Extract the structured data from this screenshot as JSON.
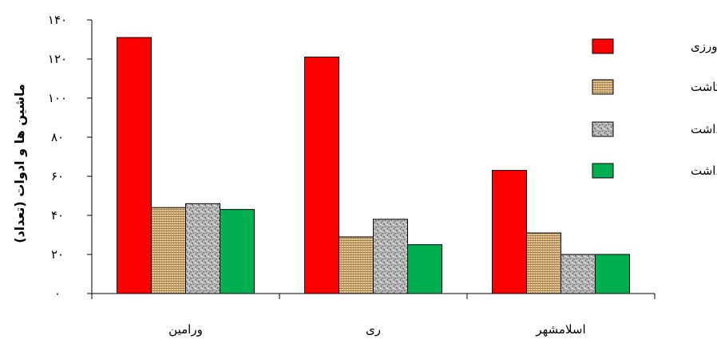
{
  "chart_data": {
    "type": "bar",
    "ylabel": "ماشین ها و ادوات (تعداد)",
    "xlabel": "",
    "categories": [
      "ورامین",
      "ری",
      "اسلامشهر"
    ],
    "ylim": [
      0,
      140
    ],
    "yticks": [
      0,
      20,
      40,
      60,
      80,
      100,
      120,
      140
    ],
    "ytick_labels": [
      "۰",
      "۲۰",
      "۴۰",
      "۶۰",
      "۸۰",
      "۱۰۰",
      "۱۲۰",
      "۱۴۰"
    ],
    "grid": false,
    "legend_position": "right",
    "series": [
      {
        "name": "خاک ورزی",
        "values": [
          131,
          121,
          63
        ],
        "color": "#ff0000",
        "pattern": "solid"
      },
      {
        "name": "کاشت",
        "values": [
          44,
          29,
          31
        ],
        "color": "#d2b48c",
        "pattern": "burlap"
      },
      {
        "name": "داشت",
        "values": [
          46,
          38,
          20
        ],
        "color": "#a9a9a9",
        "pattern": "granite"
      },
      {
        "name": "برداشت",
        "values": [
          43,
          25,
          20
        ],
        "color": "#00b050",
        "pattern": "solid"
      }
    ]
  }
}
